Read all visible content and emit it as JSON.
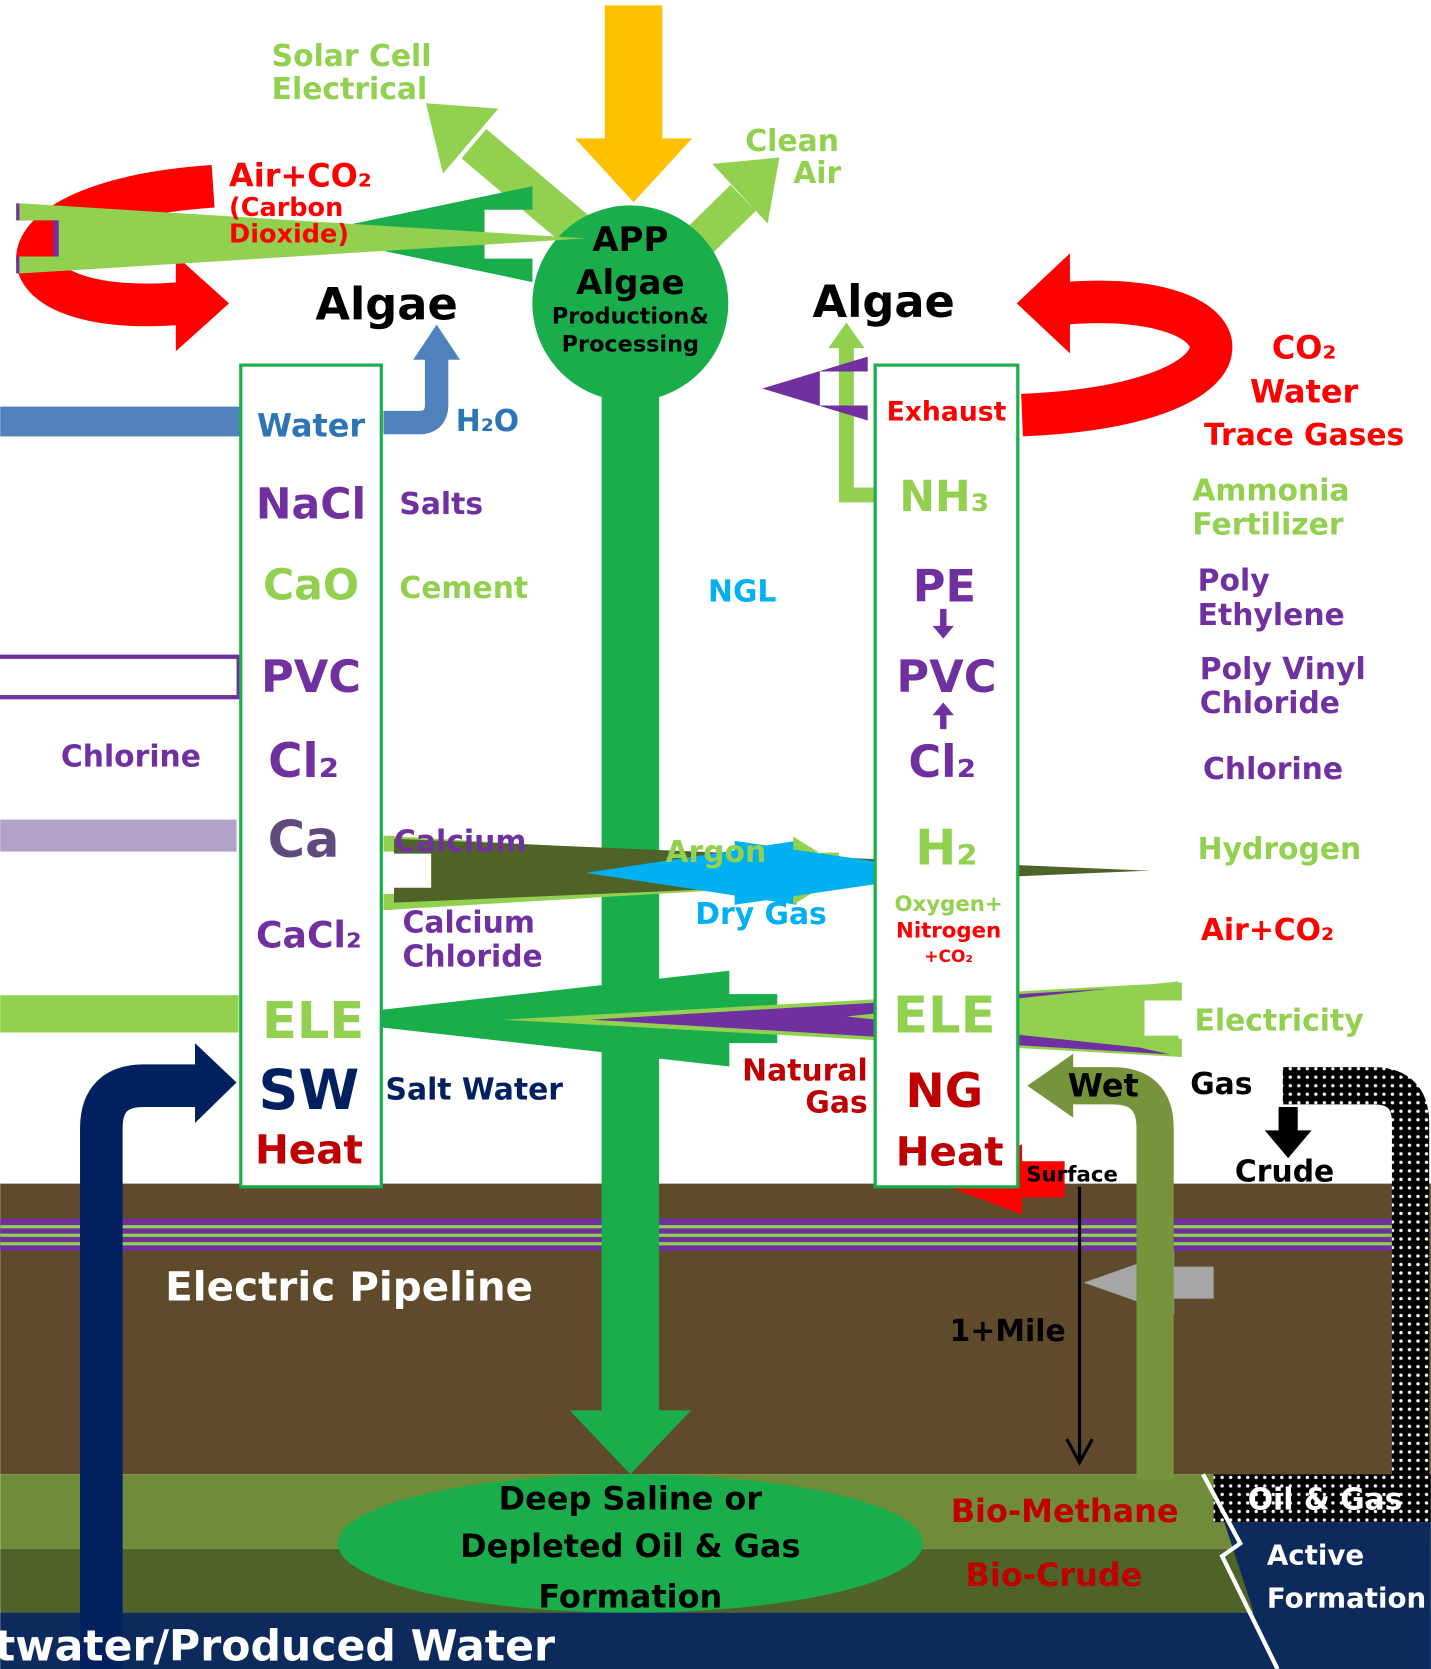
{
  "top": {
    "solar_cell": [
      "Solar Cell",
      "Electrical"
    ],
    "clean_air": [
      "Clean",
      "Air"
    ],
    "air_co2": [
      "Air+CO₂",
      "(Carbon",
      "Dioxide)"
    ],
    "algae_left": "Algae",
    "algae_right": "Algae",
    "center": [
      "APP",
      "Algae",
      "Production&",
      "Processing"
    ],
    "co2_water": [
      "CO₂",
      "Water",
      "Trace Gases"
    ]
  },
  "left_column": [
    "Water",
    "NaCl",
    "CaO",
    "PVC",
    "Cl₂",
    "Ca",
    "CaCl₂",
    "ELE",
    "SW",
    "Heat"
  ],
  "left_labels": {
    "h2o": "H₂O",
    "salts": "Salts",
    "cement": "Cement",
    "chlorine": "Chlorine",
    "calcium": "Calcium",
    "calcium_chloride": [
      "Calcium",
      "Chloride"
    ],
    "salt_water": "Salt Water"
  },
  "right_column": {
    "exhaust": "Exhaust",
    "nh3": "NH₃",
    "pe": "PE",
    "pvc": "PVC",
    "cl2": "Cl₂",
    "h2": "H₂",
    "gases": [
      "Oxygen+",
      "Nitrogen",
      "+CO₂"
    ],
    "ele": "ELE",
    "ng": "NG",
    "heat": "Heat"
  },
  "middle_labels": {
    "ngl": "NGL",
    "argon": "Argon",
    "dry_gas": "Dry Gas",
    "natural_gas": [
      "Natural",
      "Gas"
    ]
  },
  "right_labels": {
    "ammonia_fertilizer": [
      "Ammonia",
      "Fertilizer"
    ],
    "poly_ethylene": [
      "Poly",
      "Ethylene"
    ],
    "poly_vinyl_chloride": [
      "Poly Vinyl",
      "Chloride"
    ],
    "chlorine": "Chlorine",
    "hydrogen": "Hydrogen",
    "air_co2": "Air+CO₂",
    "electricity": "Electricity"
  },
  "wells": {
    "wet": "Wet",
    "gas": "Gas",
    "crude": "Crude",
    "surface": "Surface",
    "depth": "1+Mile"
  },
  "underground": {
    "electric_pipeline": "Electric Pipeline",
    "formation": [
      "Deep Saline or",
      "Depleted Oil & Gas",
      "Formation"
    ],
    "bio_methane": "Bio-Methane",
    "bio_crude": "Bio-Crude",
    "oil_gas": "Oil & Gas",
    "active_formation": [
      "Active",
      "Formation"
    ],
    "produced_water": "twater/Produced Water"
  }
}
